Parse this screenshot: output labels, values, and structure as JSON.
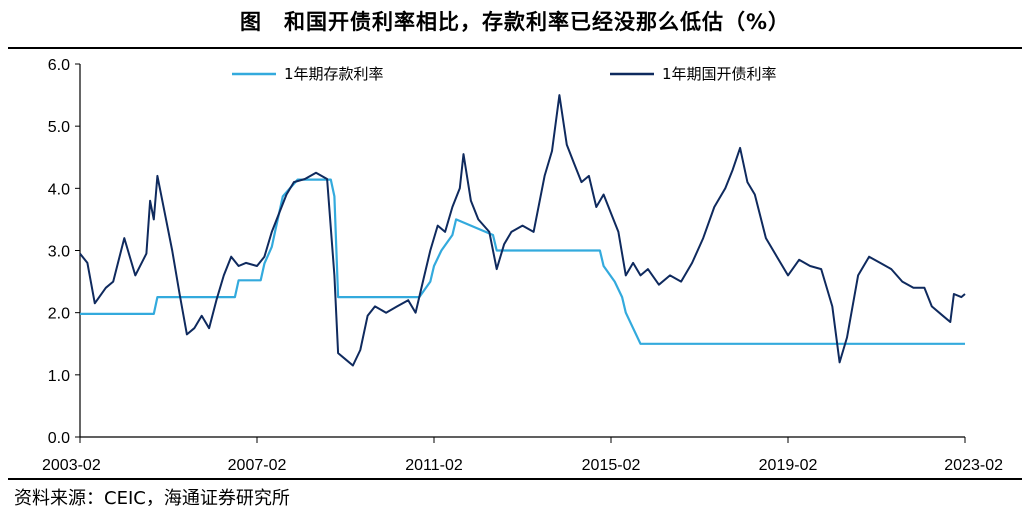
{
  "title": "图　和国开债利率相比，存款利率已经没那么低估（%）",
  "source": "资料来源：CEIC，海通证券研究所",
  "chart_data": {
    "type": "line",
    "title": "图　和国开债利率相比，存款利率已经没那么低估（%）",
    "xlabel": "",
    "ylabel": "",
    "ylim": [
      0,
      6
    ],
    "yticks": [
      "0.0",
      "1.0",
      "2.0",
      "3.0",
      "4.0",
      "5.0",
      "6.0"
    ],
    "xticks": [
      "2003-02",
      "2007-02",
      "2011-02",
      "2015-02",
      "2019-02",
      "2023-02"
    ],
    "x_range": [
      "2003-02",
      "2023-02"
    ],
    "grid": false,
    "legend": "top",
    "series": [
      {
        "name": "1年期存款利率",
        "color": "#33aadd",
        "points": [
          [
            "2003-02",
            1.98
          ],
          [
            "2004-10",
            1.98
          ],
          [
            "2004-11",
            2.25
          ],
          [
            "2006-08",
            2.25
          ],
          [
            "2006-09",
            2.52
          ],
          [
            "2007-03",
            2.52
          ],
          [
            "2007-04",
            2.79
          ],
          [
            "2007-06",
            3.06
          ],
          [
            "2007-07",
            3.33
          ],
          [
            "2007-08",
            3.6
          ],
          [
            "2007-09",
            3.87
          ],
          [
            "2008-01",
            4.14
          ],
          [
            "2008-10",
            4.14
          ],
          [
            "2008-11",
            3.87
          ],
          [
            "2008-12",
            2.25
          ],
          [
            "2010-10",
            2.25
          ],
          [
            "2011-01",
            2.5
          ],
          [
            "2011-02",
            2.75
          ],
          [
            "2011-04",
            3.0
          ],
          [
            "2011-07",
            3.25
          ],
          [
            "2011-08",
            3.5
          ],
          [
            "2012-06",
            3.25
          ],
          [
            "2012-07",
            3.0
          ],
          [
            "2014-11",
            3.0
          ],
          [
            "2014-12",
            2.75
          ],
          [
            "2015-03",
            2.5
          ],
          [
            "2015-05",
            2.25
          ],
          [
            "2015-06",
            2.0
          ],
          [
            "2015-08",
            1.75
          ],
          [
            "2015-10",
            1.5
          ],
          [
            "2023-02",
            1.5
          ]
        ]
      },
      {
        "name": "1年期国开债利率",
        "color": "#0f2a5e",
        "points": [
          [
            "2003-02",
            2.95
          ],
          [
            "2003-04",
            2.8
          ],
          [
            "2003-06",
            2.15
          ],
          [
            "2003-09",
            2.4
          ],
          [
            "2003-11",
            2.5
          ],
          [
            "2004-02",
            3.2
          ],
          [
            "2004-05",
            2.6
          ],
          [
            "2004-08",
            2.95
          ],
          [
            "2004-09",
            3.8
          ],
          [
            "2004-10",
            3.5
          ],
          [
            "2004-11",
            4.2
          ],
          [
            "2005-01",
            3.6
          ],
          [
            "2005-03",
            3.0
          ],
          [
            "2005-05",
            2.3
          ],
          [
            "2005-07",
            1.65
          ],
          [
            "2005-09",
            1.75
          ],
          [
            "2005-11",
            1.95
          ],
          [
            "2006-01",
            1.75
          ],
          [
            "2006-03",
            2.2
          ],
          [
            "2006-05",
            2.6
          ],
          [
            "2006-07",
            2.9
          ],
          [
            "2006-09",
            2.75
          ],
          [
            "2006-11",
            2.8
          ],
          [
            "2007-02",
            2.75
          ],
          [
            "2007-04",
            2.9
          ],
          [
            "2007-06",
            3.3
          ],
          [
            "2007-08",
            3.6
          ],
          [
            "2007-10",
            3.9
          ],
          [
            "2007-12",
            4.1
          ],
          [
            "2008-03",
            4.15
          ],
          [
            "2008-06",
            4.25
          ],
          [
            "2008-09",
            4.15
          ],
          [
            "2008-11",
            2.6
          ],
          [
            "2008-12",
            1.35
          ],
          [
            "2009-02",
            1.25
          ],
          [
            "2009-04",
            1.15
          ],
          [
            "2009-06",
            1.4
          ],
          [
            "2009-08",
            1.95
          ],
          [
            "2009-10",
            2.1
          ],
          [
            "2010-01",
            2.0
          ],
          [
            "2010-04",
            2.1
          ],
          [
            "2010-07",
            2.2
          ],
          [
            "2010-09",
            2.0
          ],
          [
            "2010-11",
            2.5
          ],
          [
            "2011-01",
            3.0
          ],
          [
            "2011-03",
            3.4
          ],
          [
            "2011-05",
            3.3
          ],
          [
            "2011-07",
            3.7
          ],
          [
            "2011-09",
            4.0
          ],
          [
            "2011-10",
            4.55
          ],
          [
            "2011-12",
            3.8
          ],
          [
            "2012-02",
            3.5
          ],
          [
            "2012-05",
            3.3
          ],
          [
            "2012-07",
            2.7
          ],
          [
            "2012-09",
            3.1
          ],
          [
            "2012-11",
            3.3
          ],
          [
            "2013-02",
            3.4
          ],
          [
            "2013-05",
            3.3
          ],
          [
            "2013-08",
            4.2
          ],
          [
            "2013-10",
            4.6
          ],
          [
            "2013-12",
            5.5
          ],
          [
            "2014-02",
            4.7
          ],
          [
            "2014-04",
            4.4
          ],
          [
            "2014-06",
            4.1
          ],
          [
            "2014-08",
            4.2
          ],
          [
            "2014-10",
            3.7
          ],
          [
            "2014-12",
            3.9
          ],
          [
            "2015-02",
            3.6
          ],
          [
            "2015-04",
            3.3
          ],
          [
            "2015-06",
            2.6
          ],
          [
            "2015-08",
            2.8
          ],
          [
            "2015-10",
            2.6
          ],
          [
            "2015-12",
            2.7
          ],
          [
            "2016-03",
            2.45
          ],
          [
            "2016-06",
            2.6
          ],
          [
            "2016-09",
            2.5
          ],
          [
            "2016-12",
            2.8
          ],
          [
            "2017-03",
            3.2
          ],
          [
            "2017-06",
            3.7
          ],
          [
            "2017-09",
            4.0
          ],
          [
            "2017-11",
            4.3
          ],
          [
            "2018-01",
            4.65
          ],
          [
            "2018-03",
            4.1
          ],
          [
            "2018-05",
            3.9
          ],
          [
            "2018-08",
            3.2
          ],
          [
            "2018-11",
            2.9
          ],
          [
            "2019-02",
            2.6
          ],
          [
            "2019-05",
            2.85
          ],
          [
            "2019-08",
            2.75
          ],
          [
            "2019-11",
            2.7
          ],
          [
            "2020-02",
            2.1
          ],
          [
            "2020-04",
            1.2
          ],
          [
            "2020-06",
            1.6
          ],
          [
            "2020-09",
            2.6
          ],
          [
            "2020-12",
            2.9
          ],
          [
            "2021-03",
            2.8
          ],
          [
            "2021-06",
            2.7
          ],
          [
            "2021-09",
            2.5
          ],
          [
            "2021-12",
            2.4
          ],
          [
            "2022-03",
            2.4
          ],
          [
            "2022-05",
            2.1
          ],
          [
            "2022-08",
            1.95
          ],
          [
            "2022-10",
            1.85
          ],
          [
            "2022-11",
            2.3
          ],
          [
            "2023-01",
            2.25
          ],
          [
            "2023-02",
            2.3
          ]
        ]
      }
    ]
  }
}
